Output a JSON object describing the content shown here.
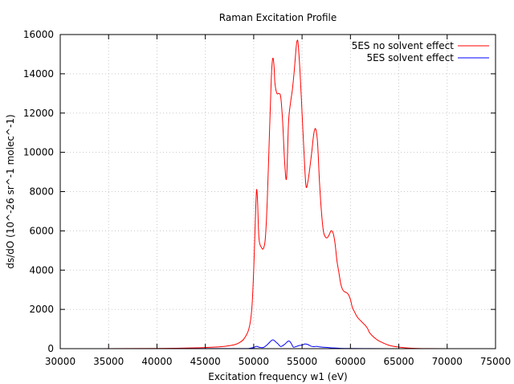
{
  "chart_data": {
    "type": "line",
    "title": "Raman Excitation Profile",
    "xlabel": "Excitation frequency w1 (eV)",
    "ylabel": "ds/dO (10^-26 sr^-1 molec^-1)",
    "xlim": [
      30000,
      75000
    ],
    "ylim": [
      0,
      16000
    ],
    "x_ticks": [
      "30000",
      "35000",
      "40000",
      "45000",
      "50000",
      "55000",
      "60000",
      "65000",
      "70000",
      "75000"
    ],
    "y_ticks": [
      "0",
      "2000",
      "4000",
      "6000",
      "8000",
      "10000",
      "12000",
      "14000",
      "16000"
    ],
    "grid": true,
    "legend_position": "top-right",
    "series": [
      {
        "name": "5ES no solvent effect",
        "color": "#ff0000",
        "x": [
          32000,
          40000,
          44000,
          46000,
          47000,
          48000,
          48500,
          49000,
          49500,
          49800,
          50000,
          50200,
          50300,
          50400,
          50500,
          50600,
          50800,
          51000,
          51200,
          51400,
          51600,
          51800,
          51900,
          52000,
          52100,
          52200,
          52400,
          52600,
          52800,
          53000,
          53200,
          53400,
          53600,
          53800,
          54000,
          54200,
          54400,
          54500,
          54600,
          54800,
          55000,
          55200,
          55400,
          55600,
          55800,
          56000,
          56200,
          56400,
          56600,
          56800,
          57000,
          57200,
          57400,
          57600,
          57800,
          58000,
          58200,
          58400,
          58600,
          58800,
          59000,
          59200,
          59400,
          59600,
          59800,
          60000,
          60200,
          60400,
          60600,
          60800,
          61000,
          61200,
          61400,
          61600,
          61800,
          62000,
          62500,
          63000,
          64000,
          65000,
          66000,
          67000,
          68000,
          70000,
          72500
        ],
        "y": [
          0,
          10,
          40,
          80,
          120,
          200,
          300,
          500,
          1000,
          2000,
          4000,
          7000,
          8100,
          7500,
          6000,
          5400,
          5150,
          5100,
          5600,
          7500,
          10500,
          13500,
          14500,
          14800,
          14400,
          13500,
          13000,
          13000,
          12800,
          11500,
          9500,
          8700,
          11500,
          12500,
          13200,
          14200,
          15400,
          15700,
          15500,
          14000,
          12000,
          10000,
          8300,
          8500,
          9200,
          10000,
          10900,
          11200,
          10500,
          8500,
          7000,
          6000,
          5700,
          5650,
          5800,
          6000,
          5900,
          5400,
          4500,
          3900,
          3300,
          3000,
          2900,
          2850,
          2750,
          2500,
          2100,
          1900,
          1700,
          1550,
          1450,
          1350,
          1250,
          1150,
          1000,
          800,
          550,
          380,
          170,
          80,
          30,
          10,
          5,
          0,
          0
        ]
      },
      {
        "name": "5ES solvent effect",
        "color": "#0000ff",
        "x": [
          32000,
          49000,
          49500,
          50000,
          50300,
          50600,
          51000,
          51400,
          51800,
          52000,
          52200,
          52500,
          52800,
          53200,
          53500,
          53700,
          53900,
          54100,
          54400,
          54700,
          55000,
          55300,
          55600,
          55900,
          56200,
          56500,
          56800,
          57200,
          57600,
          58000,
          58500,
          59000,
          60000,
          62000,
          64000,
          66000,
          70000,
          72500
        ],
        "y": [
          0,
          5,
          10,
          60,
          120,
          70,
          60,
          200,
          400,
          450,
          380,
          250,
          110,
          220,
          360,
          380,
          250,
          80,
          110,
          160,
          180,
          240,
          210,
          130,
          100,
          120,
          90,
          70,
          60,
          40,
          30,
          15,
          8,
          3,
          0,
          0,
          0,
          0
        ]
      }
    ]
  }
}
